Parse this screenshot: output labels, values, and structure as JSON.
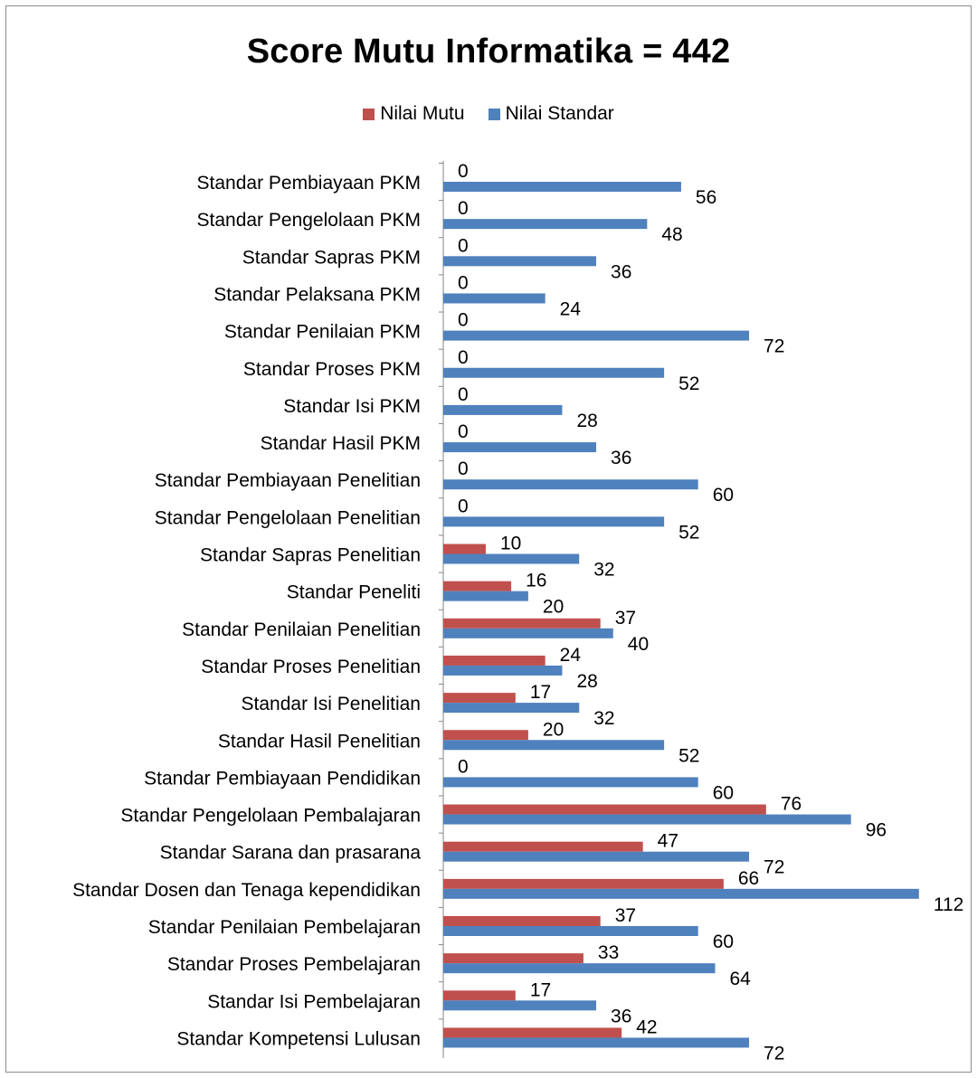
{
  "chart_data": {
    "type": "bar",
    "orientation": "horizontal",
    "title": "Score Mutu Informatika = 442",
    "categories": [
      "Standar Pembiayaan PKM",
      "Standar Pengelolaan PKM",
      "Standar Sapras PKM",
      "Standar Pelaksana PKM",
      "Standar Penilaian PKM",
      "Standar Proses PKM",
      "Standar Isi PKM",
      "Standar Hasil PKM",
      "Standar Pembiayaan Penelitian",
      "Standar Pengelolaan Penelitian",
      "Standar Sapras Penelitian",
      "Standar Peneliti",
      "Standar Penilaian Penelitian",
      "Standar Proses Penelitian",
      "Standar Isi Penelitian",
      "Standar Hasil Penelitian",
      "Standar Pembiayaan Pendidikan",
      "Standar Pengelolaan Pembalajaran",
      "Standar Sarana dan prasarana",
      "Standar Dosen dan Tenaga kependidikan",
      "Standar Penilaian Pembelajaran",
      "Standar Proses Pembelajaran",
      "Standar Isi Pembelajaran",
      "Standar Kompetensi Lulusan"
    ],
    "series": [
      {
        "name": "Nilai Mutu",
        "color": "#c0504d",
        "values": [
          0,
          0,
          0,
          0,
          0,
          0,
          0,
          0,
          0,
          0,
          10,
          16,
          37,
          24,
          17,
          20,
          0,
          76,
          47,
          66,
          37,
          33,
          17,
          42
        ]
      },
      {
        "name": "Nilai Standar",
        "color": "#4f81bd",
        "values": [
          56,
          48,
          36,
          24,
          72,
          52,
          28,
          36,
          60,
          52,
          32,
          20,
          40,
          28,
          32,
          52,
          60,
          96,
          72,
          112,
          60,
          64,
          36,
          72
        ]
      }
    ],
    "xlim": [
      0,
      112
    ],
    "grid": false,
    "legend_position": "top",
    "data_labels": true
  }
}
